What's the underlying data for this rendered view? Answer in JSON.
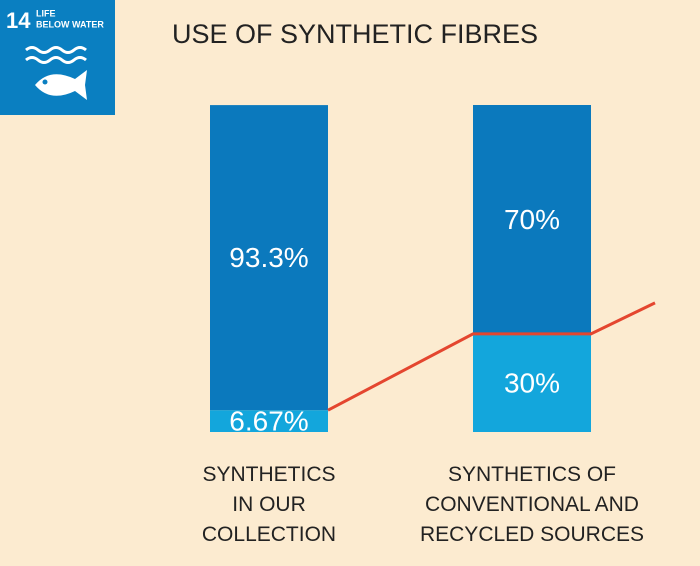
{
  "badge": {
    "number": "14",
    "lines": [
      "LIFE",
      "BELOW WATER"
    ]
  },
  "chart_data": {
    "type": "stacked_bar",
    "title": "USE OF SYNTHETIC FIBRES",
    "categories": [
      "SYNTHETICS IN OUR COLLECTION",
      "SYNTHETICS OF CONVENTIONAL AND RECYCLED SOURCES"
    ],
    "series": [
      {
        "color": "#13a6dc",
        "values": [
          6.67,
          30
        ],
        "value_labels": [
          "6.67%",
          "30%"
        ]
      },
      {
        "color": "#0b79bd",
        "values": [
          93.3,
          70
        ],
        "value_labels": [
          "93.3%",
          "70%"
        ]
      }
    ],
    "ylim": [
      0,
      100
    ],
    "line_color": "#e4462f"
  }
}
